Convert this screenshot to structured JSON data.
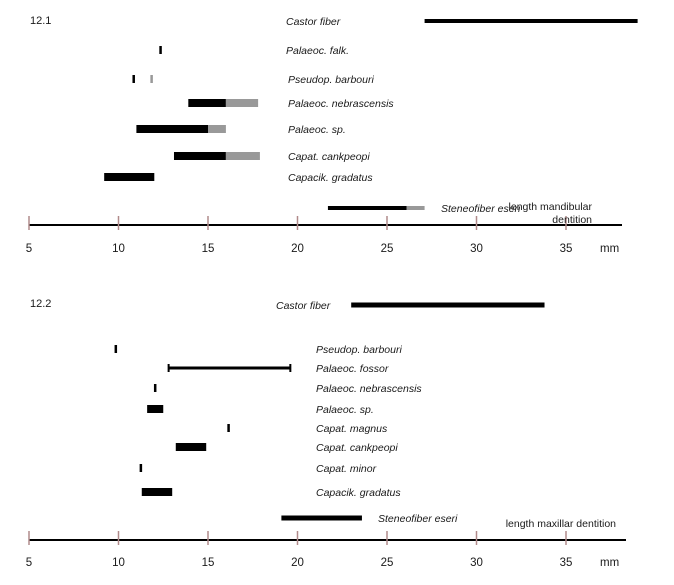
{
  "chart_data": [
    {
      "type": "range-bar",
      "panel_label": "12.1",
      "axis_title": "length mandibular dentition",
      "axis_title_lines": [
        "length mandibular",
        "dentition"
      ],
      "unit": "mm",
      "xlim": [
        5,
        38
      ],
      "ticks": [
        5,
        10,
        15,
        20,
        25,
        30,
        35
      ],
      "colors": {
        "primary": "#000000",
        "extension": "#999999",
        "tick": "#b08a8a"
      },
      "taxa": [
        {
          "name": "Castor fiber",
          "ranges": [
            {
              "from": 27.1,
              "to": 39.0,
              "kind": "primary"
            }
          ]
        },
        {
          "name": "Palaeoc. falk.",
          "ranges": [
            {
              "from": 12.3,
              "to": 12.4,
              "kind": "primary"
            }
          ]
        },
        {
          "name": "Pseudop. barbouri",
          "ranges": [
            {
              "from": 10.8,
              "to": 10.9,
              "kind": "primary"
            },
            {
              "from": 11.8,
              "to": 11.9,
              "kind": "extension"
            }
          ]
        },
        {
          "name": "Palaeoc. nebrascensis",
          "ranges": [
            {
              "from": 13.9,
              "to": 16.0,
              "kind": "primary"
            },
            {
              "from": 16.0,
              "to": 17.8,
              "kind": "extension"
            }
          ]
        },
        {
          "name": "Palaeoc. sp.",
          "ranges": [
            {
              "from": 11.0,
              "to": 15.0,
              "kind": "primary"
            },
            {
              "from": 15.0,
              "to": 16.0,
              "kind": "extension"
            }
          ]
        },
        {
          "name": "Capat. cankpeopi",
          "ranges": [
            {
              "from": 13.1,
              "to": 16.0,
              "kind": "primary"
            },
            {
              "from": 16.0,
              "to": 17.9,
              "kind": "extension"
            }
          ]
        },
        {
          "name": "Capacik. gradatus",
          "ranges": [
            {
              "from": 9.2,
              "to": 12.0,
              "kind": "primary"
            }
          ]
        },
        {
          "name": "Steneofiber eseri",
          "ranges": [
            {
              "from": 21.7,
              "to": 26.1,
              "kind": "primary"
            },
            {
              "from": 26.1,
              "to": 27.1,
              "kind": "extension"
            }
          ]
        }
      ]
    },
    {
      "type": "range-bar",
      "panel_label": "12.2",
      "axis_title": "length maxillar dentition",
      "axis_title_lines": [
        "length maxillar dentition"
      ],
      "unit": "mm",
      "xlim": [
        5,
        38
      ],
      "ticks": [
        5,
        10,
        15,
        20,
        25,
        30,
        35
      ],
      "colors": {
        "primary": "#000000",
        "extension": "#999999",
        "tick": "#b08a8a"
      },
      "taxa": [
        {
          "name": "Castor fiber",
          "ranges": [
            {
              "from": 23.0,
              "to": 33.8,
              "kind": "primary"
            }
          ]
        },
        {
          "name": "Pseudop. barbouri",
          "ranges": [
            {
              "from": 9.8,
              "to": 9.9,
              "kind": "primary"
            }
          ]
        },
        {
          "name": "Palaeoc. fossor",
          "ranges": [
            {
              "from": 12.8,
              "to": 19.6,
              "kind": "primary",
              "style": "bracket"
            }
          ]
        },
        {
          "name": "Palaeoc. nebrascensis",
          "ranges": [
            {
              "from": 12.0,
              "to": 12.1,
              "kind": "primary"
            }
          ]
        },
        {
          "name": "Palaeoc. sp.",
          "ranges": [
            {
              "from": 11.6,
              "to": 12.5,
              "kind": "primary"
            }
          ]
        },
        {
          "name": "Capat. magnus",
          "ranges": [
            {
              "from": 16.1,
              "to": 16.2,
              "kind": "primary"
            }
          ]
        },
        {
          "name": "Capat. cankpeopi",
          "ranges": [
            {
              "from": 13.2,
              "to": 14.9,
              "kind": "primary"
            }
          ]
        },
        {
          "name": "Capat. minor",
          "ranges": [
            {
              "from": 11.2,
              "to": 11.3,
              "kind": "primary"
            }
          ]
        },
        {
          "name": "Capacik. gradatus",
          "ranges": [
            {
              "from": 11.3,
              "to": 13.0,
              "kind": "primary"
            }
          ]
        },
        {
          "name": "Steneofiber eseri",
          "ranges": [
            {
              "from": 19.1,
              "to": 23.6,
              "kind": "primary"
            }
          ]
        }
      ]
    }
  ]
}
